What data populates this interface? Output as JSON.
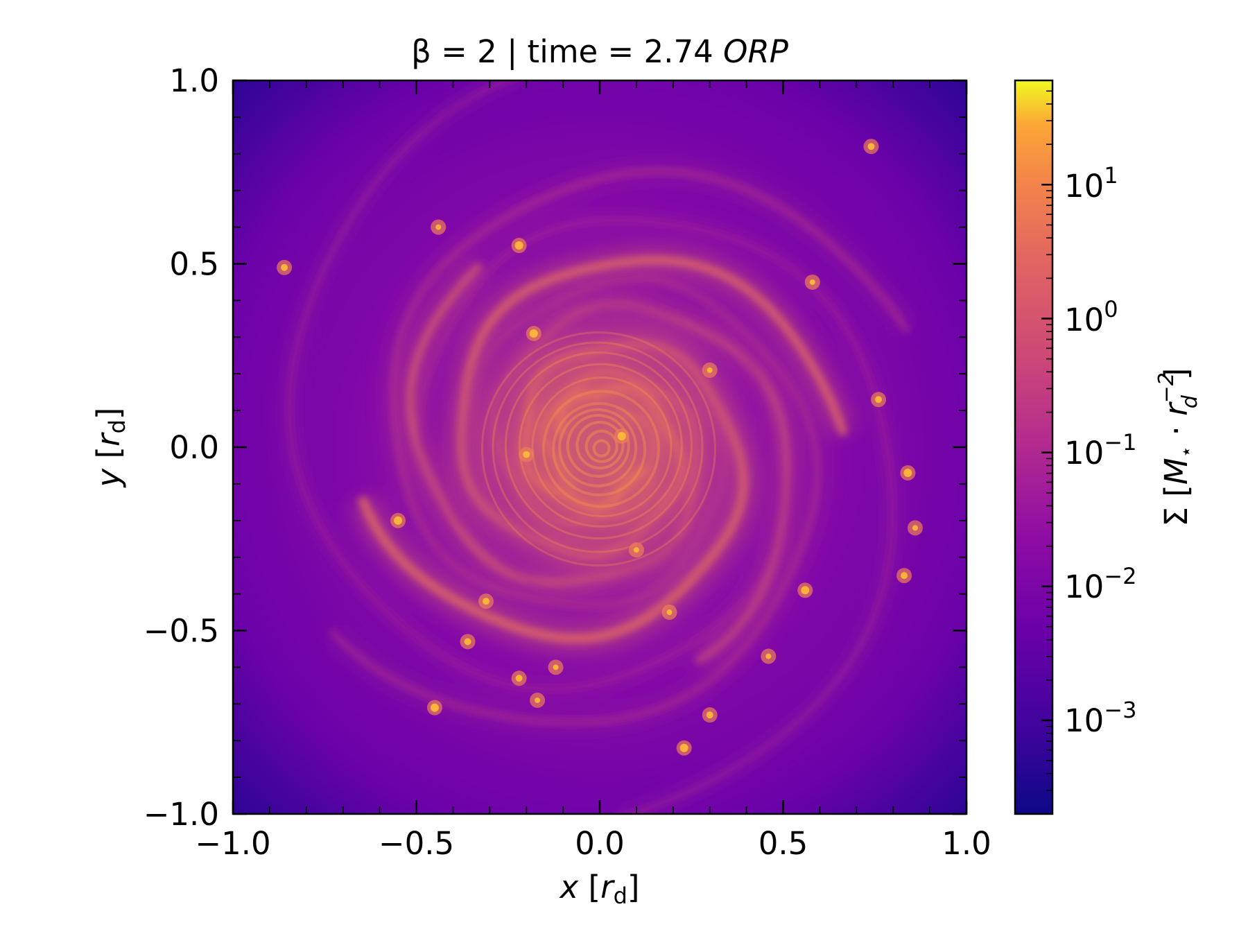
{
  "chart_data": {
    "type": "heatmap",
    "title": "β = 2 | time = 2.74 ORP",
    "title_parts": {
      "prefix": "β = 2 | time = 2.74 ",
      "italic_unit": "ORP"
    },
    "xlabel": {
      "var": "x",
      "unit_base": "r",
      "unit_sub": "d"
    },
    "ylabel": {
      "var": "y",
      "unit_base": "r",
      "unit_sub": "d"
    },
    "xlim": [
      -1.0,
      1.0
    ],
    "ylim": [
      -1.0,
      1.0
    ],
    "x_major_ticks": [
      -1.0,
      -0.5,
      0.0,
      0.5,
      1.0
    ],
    "x_tick_labels": [
      "−1.0",
      "−0.5",
      "0.0",
      "0.5",
      "1.0"
    ],
    "y_major_ticks": [
      -1.0,
      -0.5,
      0.0,
      0.5,
      1.0
    ],
    "y_tick_labels": [
      "−1.0",
      "−0.5",
      "0.0",
      "0.5",
      "1.0"
    ],
    "minor_tick_step": 0.1,
    "grid": false,
    "colormap": "plasma",
    "colorbar": {
      "scale": "log",
      "range": [
        0.0002,
        60
      ],
      "ticks": [
        0.001,
        0.01,
        0.1,
        1,
        10
      ],
      "tick_labels": [
        {
          "base": "10",
          "exp": "−3"
        },
        {
          "base": "10",
          "exp": "−2"
        },
        {
          "base": "10",
          "exp": "−1"
        },
        {
          "base": "10",
          "exp": "0"
        },
        {
          "base": "10",
          "exp": "1"
        }
      ],
      "label": "Σ [M⋆ · r_d^−2]",
      "label_parts": {
        "sigma": "Σ",
        "m": "M",
        "star": "⋆",
        "dot": " · ",
        "r": "r",
        "r_sub": "d",
        "r_sup": "−2"
      }
    },
    "features": {
      "pattern": "spiral disk with fragmented filaments and clumps",
      "center": [
        0.0,
        0.0
      ]
    }
  },
  "colors": {
    "plasma_low": "#0d0887",
    "plasma_mid": "#9c179e",
    "plasma_orange": "#ed7953",
    "plasma_high": "#f0f921"
  }
}
